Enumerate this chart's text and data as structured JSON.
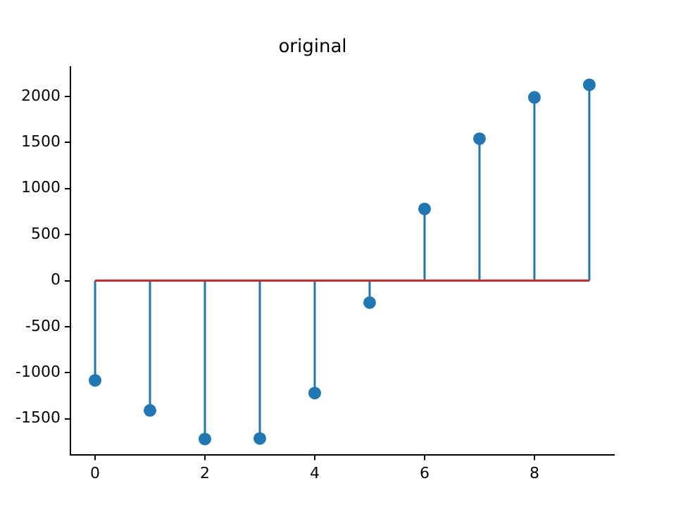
{
  "chart_data": {
    "type": "lollipop",
    "title": "original",
    "x": [
      0,
      1,
      2,
      3,
      4,
      5,
      6,
      7,
      8,
      9
    ],
    "series": [
      {
        "color": "#1f77b4",
        "values": [
          -1084,
          -1410,
          -1720,
          -1715,
          -1221,
          -239,
          779,
          1542,
          1990,
          2127
        ]
      }
    ],
    "xlim": [
      -0.45,
      9.45
    ],
    "xticks": [
      0,
      2,
      4,
      6,
      8
    ],
    "ylim": [
      -1890,
      2320
    ],
    "yticks": [
      -1500,
      -1000,
      -500,
      0,
      500,
      1000,
      1500,
      2000
    ],
    "ref_lines": [
      {
        "axis": "y",
        "value": 0,
        "color": "#d62728"
      }
    ],
    "marker": "circle",
    "grid": false,
    "legend": false
  }
}
